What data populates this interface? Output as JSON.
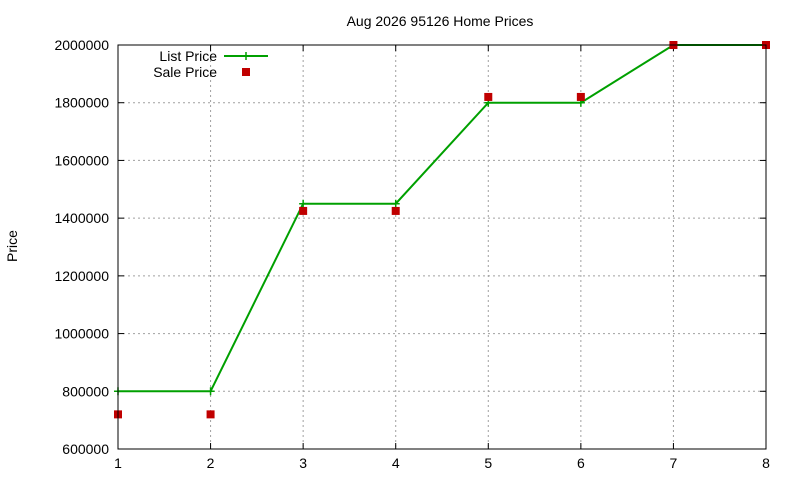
{
  "chart_data": {
    "type": "line",
    "title": "Aug 2026 95126 Home Prices",
    "xlabel": "",
    "ylabel": "Price",
    "x": [
      1,
      2,
      3,
      4,
      5,
      6,
      7,
      8
    ],
    "xlim": [
      1,
      8
    ],
    "ylim": [
      600000,
      2000000
    ],
    "x_ticks": [
      "1",
      "2",
      "3",
      "4",
      "5",
      "6",
      "7",
      "8"
    ],
    "y_ticks": [
      "600000",
      "800000",
      "1000000",
      "1200000",
      "1400000",
      "1600000",
      "1800000",
      "2000000"
    ],
    "grid": true,
    "legend_position": "top-left",
    "series": [
      {
        "name": "List Price",
        "style": "linespoints",
        "marker": "plus",
        "color": "#00a000",
        "values": [
          800000,
          800000,
          1450000,
          1450000,
          1800000,
          1800000,
          2000000,
          2000000
        ]
      },
      {
        "name": "Sale Price",
        "style": "points",
        "marker": "square",
        "color": "#c00000",
        "values": [
          720000,
          720000,
          1425000,
          1425000,
          1820000,
          1820000,
          2000000,
          2000000
        ]
      }
    ]
  }
}
